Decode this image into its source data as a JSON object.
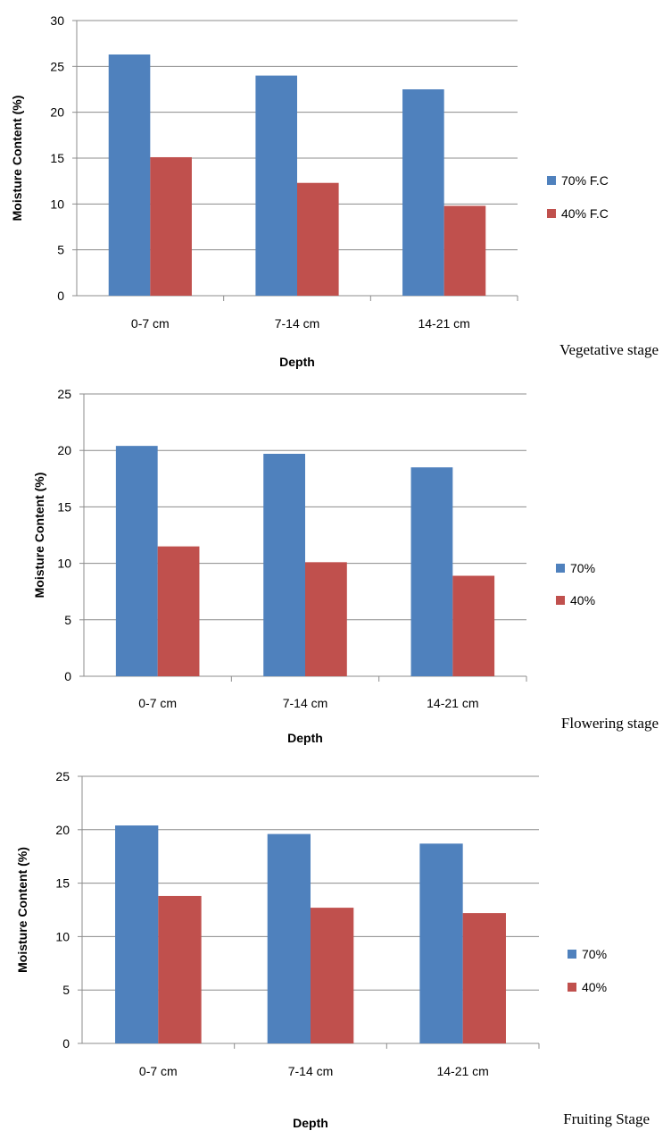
{
  "chart_data": [
    {
      "type": "bar",
      "caption": "Vegetative stage",
      "categories": [
        "0-7 cm",
        "7-14 cm",
        "14-21 cm"
      ],
      "series": [
        {
          "name": "70% F.C",
          "values": [
            26.3,
            24.0,
            22.5
          ],
          "color": "#4f81bd"
        },
        {
          "name": "40% F.C",
          "values": [
            15.1,
            12.3,
            9.8
          ],
          "color": "#c0504d"
        }
      ],
      "xlabel": "Depth",
      "ylabel": "Moisture Content (%)",
      "ylim": [
        0,
        30
      ],
      "yticks": [
        0,
        5,
        10,
        15,
        20,
        25,
        30
      ],
      "grid": true,
      "legend": "right"
    },
    {
      "type": "bar",
      "caption": "Flowering stage",
      "categories": [
        "0-7 cm",
        "7-14 cm",
        "14-21 cm"
      ],
      "series": [
        {
          "name": "70%",
          "values": [
            20.4,
            19.7,
            18.5
          ],
          "color": "#4f81bd"
        },
        {
          "name": "40%",
          "values": [
            11.5,
            10.1,
            8.9
          ],
          "color": "#c0504d"
        }
      ],
      "xlabel": "Depth",
      "ylabel": "Moisture Content (%)",
      "ylim": [
        0,
        25
      ],
      "yticks": [
        0,
        5,
        10,
        15,
        20,
        25
      ],
      "grid": true,
      "legend": "right"
    },
    {
      "type": "bar",
      "caption": "Fruiting Stage",
      "categories": [
        "0-7 cm",
        "7-14 cm",
        "14-21 cm"
      ],
      "series": [
        {
          "name": "70%",
          "values": [
            20.4,
            19.6,
            18.7
          ],
          "color": "#4f81bd"
        },
        {
          "name": "40%",
          "values": [
            13.8,
            12.7,
            12.2
          ],
          "color": "#c0504d"
        }
      ],
      "xlabel": "Depth",
      "ylabel": "Moisture Content (%)",
      "ylim": [
        0,
        25
      ],
      "yticks": [
        0,
        5,
        10,
        15,
        20,
        25
      ],
      "grid": true,
      "legend": "right"
    }
  ]
}
